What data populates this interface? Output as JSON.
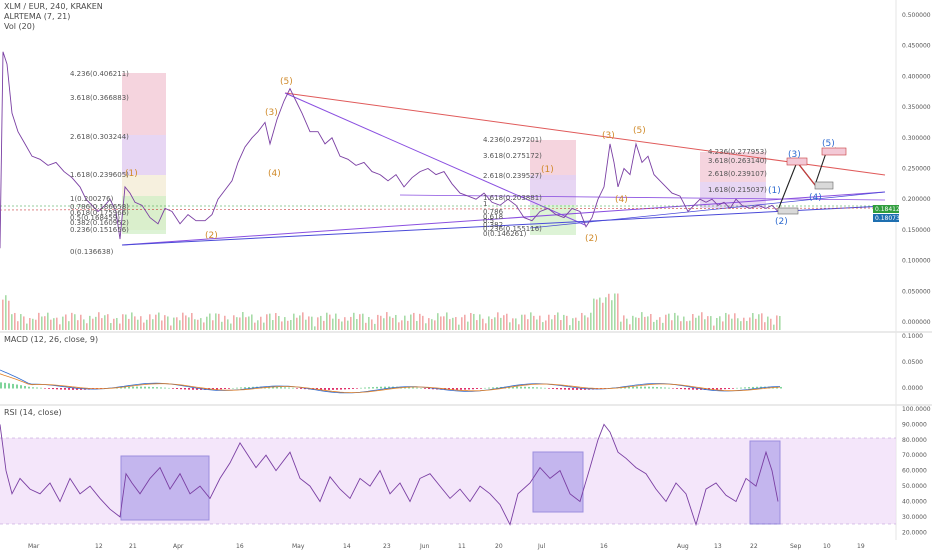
{
  "header": {
    "symbol": "XLM / EUR, 240, KRAKEN",
    "ind1": "ALRTEMA (7, 21)",
    "ind2": "Vol (20)"
  },
  "macd_label": "MACD (12, 26, close, 9)",
  "rsi_label": "RSI (14, close)",
  "colors": {
    "price": "#7a3fa3",
    "trend_red": "#e05a5a",
    "trend_purple": "#8a4fe0",
    "trend_blue": "#4a4ad8",
    "wave": "#d08a2a",
    "wave_blue": "#2f6bd0",
    "macd": "#2f6bd0",
    "signal": "#e0822a",
    "hist": "#e0306a",
    "rsi": "#7a3fa3",
    "rsi_band": "#efdcf8",
    "box": "#7e72e6"
  },
  "chart_data": [
    {
      "type": "line",
      "title": "XLM / EUR, 240, KRAKEN",
      "x_ticks": [
        "Mar",
        "12",
        "21",
        "Apr",
        "16",
        "May",
        "14",
        "23",
        "Jun",
        "11",
        "20",
        "Jul",
        "16",
        "Aug",
        "13",
        "22",
        "Sep",
        "10",
        "19"
      ],
      "y_ticks": [
        "0.500000",
        "0.450000",
        "0.400000",
        "0.350000",
        "0.300000",
        "0.250000",
        "0.200000",
        "0.150000",
        "0.100000",
        "0.050000",
        "0.000000"
      ],
      "ylim": [
        0,
        0.5
      ],
      "last_price": "0.184128",
      "last_price_2": "0.180734",
      "price_path": [
        [
          0,
          0.12
        ],
        [
          3,
          0.44
        ],
        [
          7,
          0.42
        ],
        [
          12,
          0.34
        ],
        [
          18,
          0.31
        ],
        [
          25,
          0.29
        ],
        [
          32,
          0.27
        ],
        [
          40,
          0.265
        ],
        [
          48,
          0.255
        ],
        [
          56,
          0.26
        ],
        [
          64,
          0.245
        ],
        [
          72,
          0.235
        ],
        [
          80,
          0.22
        ],
        [
          86,
          0.2
        ],
        [
          92,
          0.19
        ],
        [
          98,
          0.18
        ],
        [
          105,
          0.19
        ],
        [
          110,
          0.2
        ],
        [
          116,
          0.18
        ],
        [
          120,
          0.135
        ],
        [
          125,
          0.22
        ],
        [
          130,
          0.21
        ],
        [
          135,
          0.195
        ],
        [
          142,
          0.19
        ],
        [
          150,
          0.17
        ],
        [
          158,
          0.16
        ],
        [
          165,
          0.185
        ],
        [
          172,
          0.18
        ],
        [
          180,
          0.16
        ],
        [
          188,
          0.175
        ],
        [
          196,
          0.165
        ],
        [
          205,
          0.165
        ],
        [
          212,
          0.175
        ],
        [
          218,
          0.2
        ],
        [
          225,
          0.215
        ],
        [
          232,
          0.23
        ],
        [
          238,
          0.26
        ],
        [
          245,
          0.285
        ],
        [
          252,
          0.3
        ],
        [
          258,
          0.31
        ],
        [
          265,
          0.325
        ],
        [
          270,
          0.29
        ],
        [
          277,
          0.33
        ],
        [
          284,
          0.36
        ],
        [
          290,
          0.38
        ],
        [
          296,
          0.36
        ],
        [
          302,
          0.34
        ],
        [
          310,
          0.31
        ],
        [
          318,
          0.31
        ],
        [
          325,
          0.29
        ],
        [
          332,
          0.3
        ],
        [
          340,
          0.27
        ],
        [
          348,
          0.265
        ],
        [
          356,
          0.255
        ],
        [
          364,
          0.26
        ],
        [
          372,
          0.245
        ],
        [
          380,
          0.24
        ],
        [
          388,
          0.23
        ],
        [
          396,
          0.24
        ],
        [
          404,
          0.22
        ],
        [
          412,
          0.235
        ],
        [
          420,
          0.245
        ],
        [
          428,
          0.25
        ],
        [
          436,
          0.24
        ],
        [
          444,
          0.245
        ],
        [
          452,
          0.225
        ],
        [
          460,
          0.21
        ],
        [
          468,
          0.205
        ],
        [
          476,
          0.2
        ],
        [
          484,
          0.21
        ],
        [
          492,
          0.195
        ],
        [
          500,
          0.19
        ],
        [
          508,
          0.2
        ],
        [
          516,
          0.19
        ],
        [
          524,
          0.17
        ],
        [
          532,
          0.165
        ],
        [
          540,
          0.18
        ],
        [
          548,
          0.185
        ],
        [
          556,
          0.175
        ],
        [
          564,
          0.17
        ],
        [
          572,
          0.185
        ],
        [
          580,
          0.18
        ],
        [
          586,
          0.155
        ],
        [
          592,
          0.17
        ],
        [
          598,
          0.2
        ],
        [
          604,
          0.22
        ],
        [
          610,
          0.29
        ],
        [
          614,
          0.26
        ],
        [
          618,
          0.22
        ],
        [
          624,
          0.25
        ],
        [
          630,
          0.24
        ],
        [
          636,
          0.29
        ],
        [
          642,
          0.26
        ],
        [
          648,
          0.27
        ],
        [
          654,
          0.24
        ],
        [
          660,
          0.23
        ],
        [
          666,
          0.22
        ],
        [
          672,
          0.21
        ],
        [
          680,
          0.205
        ],
        [
          688,
          0.18
        ],
        [
          694,
          0.19
        ],
        [
          700,
          0.2
        ],
        [
          706,
          0.195
        ],
        [
          712,
          0.2
        ],
        [
          718,
          0.19
        ],
        [
          724,
          0.195
        ],
        [
          730,
          0.185
        ],
        [
          736,
          0.2
        ],
        [
          742,
          0.19
        ],
        [
          750,
          0.185
        ],
        [
          758,
          0.19
        ],
        [
          766,
          0.185
        ],
        [
          772,
          0.19
        ],
        [
          778,
          0.18
        ]
      ]
    },
    {
      "type": "area",
      "title": "MACD (12, 26, close, 9)",
      "y_ticks": [
        "0.1000",
        "0.0500",
        "0.0000"
      ]
    },
    {
      "type": "line",
      "title": "RSI (14, close)",
      "y_ticks": [
        "100.0000",
        "90.0000",
        "80.0000",
        "70.0000",
        "60.0000",
        "50.0000",
        "40.0000",
        "30.0000",
        "20.0000"
      ],
      "ylim": [
        15,
        100
      ],
      "band": [
        30,
        80
      ],
      "rsi_path": [
        [
          0,
          90
        ],
        [
          6,
          60
        ],
        [
          12,
          45
        ],
        [
          20,
          55
        ],
        [
          30,
          48
        ],
        [
          40,
          45
        ],
        [
          50,
          52
        ],
        [
          60,
          40
        ],
        [
          70,
          55
        ],
        [
          80,
          45
        ],
        [
          90,
          50
        ],
        [
          100,
          42
        ],
        [
          110,
          35
        ],
        [
          120,
          30
        ],
        [
          126,
          58
        ],
        [
          132,
          52
        ],
        [
          140,
          45
        ],
        [
          150,
          55
        ],
        [
          160,
          62
        ],
        [
          170,
          48
        ],
        [
          180,
          58
        ],
        [
          190,
          45
        ],
        [
          200,
          50
        ],
        [
          210,
          42
        ],
        [
          220,
          55
        ],
        [
          230,
          65
        ],
        [
          240,
          78
        ],
        [
          248,
          70
        ],
        [
          256,
          62
        ],
        [
          266,
          70
        ],
        [
          276,
          60
        ],
        [
          290,
          72
        ],
        [
          300,
          55
        ],
        [
          310,
          50
        ],
        [
          320,
          40
        ],
        [
          330,
          56
        ],
        [
          340,
          48
        ],
        [
          350,
          42
        ],
        [
          360,
          55
        ],
        [
          370,
          50
        ],
        [
          380,
          60
        ],
        [
          390,
          45
        ],
        [
          400,
          52
        ],
        [
          410,
          40
        ],
        [
          420,
          55
        ],
        [
          430,
          58
        ],
        [
          440,
          50
        ],
        [
          450,
          42
        ],
        [
          460,
          48
        ],
        [
          470,
          40
        ],
        [
          480,
          50
        ],
        [
          490,
          45
        ],
        [
          500,
          38
        ],
        [
          510,
          25
        ],
        [
          518,
          45
        ],
        [
          530,
          52
        ],
        [
          540,
          62
        ],
        [
          550,
          55
        ],
        [
          560,
          60
        ],
        [
          570,
          45
        ],
        [
          580,
          40
        ],
        [
          590,
          62
        ],
        [
          598,
          80
        ],
        [
          604,
          90
        ],
        [
          610,
          85
        ],
        [
          618,
          72
        ],
        [
          626,
          68
        ],
        [
          636,
          62
        ],
        [
          646,
          58
        ],
        [
          656,
          48
        ],
        [
          666,
          40
        ],
        [
          676,
          52
        ],
        [
          686,
          45
        ],
        [
          696,
          25
        ],
        [
          706,
          48
        ],
        [
          716,
          52
        ],
        [
          726,
          44
        ],
        [
          736,
          40
        ],
        [
          746,
          55
        ],
        [
          756,
          50
        ],
        [
          766,
          72
        ],
        [
          772,
          60
        ],
        [
          778,
          40
        ]
      ]
    }
  ],
  "annotations": {
    "fib_left": [
      "4.236(0.406211)",
      "3.618(0.366883)",
      "2.618(0.303244)",
      "1.618(0.239605)",
      "1(0.200276)",
      "0.786(0.186658)",
      "0.618(0.175966)",
      "0.5(0.168459)",
      "0.382(0.160952)",
      "0.236(0.151656)",
      "0(0.136638)"
    ],
    "fib_mid": [
      "4.236(0.297201)",
      "3.618(0.275172)",
      "2.618(0.239527)",
      "1.618(0.203881)",
      "1",
      "0.786",
      "0.618",
      "0.5",
      "0.382",
      "0.236(0.155116)",
      "0(0.146261)"
    ],
    "fib_right": [
      "4.236(0.277953)",
      "3.618(0.263140)",
      "2.618(0.239107)",
      "1.618(0.215037)"
    ],
    "waves": [
      "(1)",
      "(2)",
      "(3)",
      "(4)",
      "(5)",
      "(1)",
      "(2)",
      "(3)",
      "(4)",
      "(5)",
      "(1)",
      "(2)",
      "(3)",
      "(4)",
      "(5)"
    ]
  }
}
